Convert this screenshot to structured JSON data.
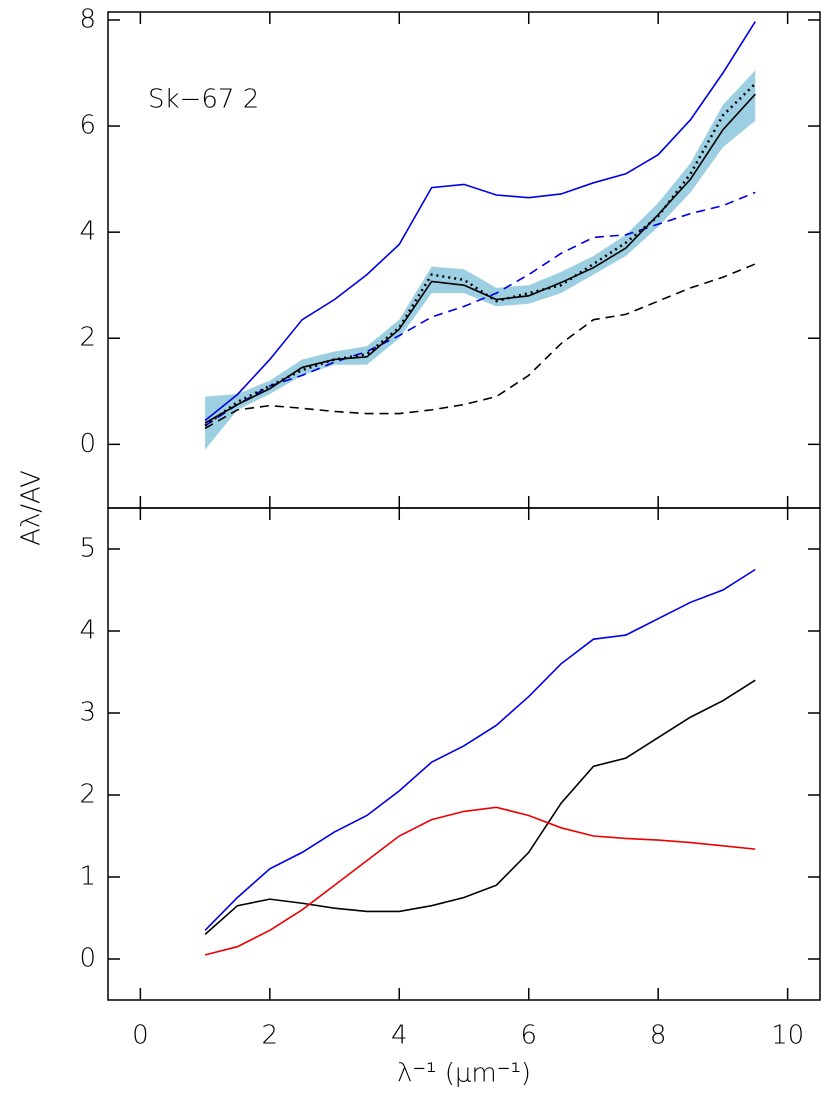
{
  "chart_data": [
    {
      "type": "line",
      "ylabel": "Aλ/AV",
      "annotation": "Sk−67 2",
      "x": [
        1,
        1.5,
        2,
        2.5,
        3,
        3.5,
        4,
        4.5,
        5,
        5.5,
        6,
        6.5,
        7,
        7.5,
        8,
        8.5,
        9,
        9.5
      ],
      "xlim": [
        -0.5,
        10.5
      ],
      "xticks": [
        0,
        2,
        4,
        6,
        8,
        10
      ],
      "ylim": [
        -1.2,
        8.15
      ],
      "yticks": [
        0,
        2,
        4,
        6,
        8
      ],
      "band": {
        "color": "#9ccfe2",
        "lower": [
          -0.1,
          0.65,
          0.95,
          1.3,
          1.5,
          1.5,
          2.0,
          2.85,
          2.85,
          2.6,
          2.65,
          2.85,
          3.2,
          3.55,
          4.1,
          4.75,
          5.6,
          6.1
        ],
        "upper": [
          0.9,
          0.95,
          1.2,
          1.6,
          1.75,
          1.85,
          2.35,
          3.35,
          3.3,
          2.95,
          3.0,
          3.25,
          3.55,
          3.95,
          4.55,
          5.3,
          6.4,
          7.05
        ]
      },
      "series": [
        {
          "color": "#0000e6",
          "style": "solid",
          "values": [
            0.45,
            0.94,
            1.6,
            2.35,
            2.73,
            3.2,
            3.77,
            4.84,
            4.9,
            4.7,
            4.65,
            4.72,
            4.93,
            5.1,
            5.46,
            6.12,
            7.0,
            7.97
          ]
        },
        {
          "color": "#0000e6",
          "style": "dashed",
          "values": [
            0.35,
            0.75,
            1.1,
            1.3,
            1.55,
            1.75,
            2.05,
            2.4,
            2.6,
            2.85,
            3.2,
            3.6,
            3.9,
            3.95,
            4.15,
            4.35,
            4.5,
            4.75
          ]
        },
        {
          "color": "#000000",
          "style": "dashed",
          "values": [
            0.3,
            0.65,
            0.73,
            0.68,
            0.62,
            0.58,
            0.58,
            0.65,
            0.75,
            0.9,
            1.3,
            1.9,
            2.35,
            2.45,
            2.7,
            2.95,
            3.15,
            3.4
          ]
        },
        {
          "color": "#000000",
          "style": "dotted",
          "values": [
            0.35,
            0.8,
            1.1,
            1.4,
            1.6,
            1.7,
            2.2,
            3.2,
            3.1,
            2.7,
            2.85,
            3.0,
            3.4,
            3.8,
            4.3,
            5.1,
            6.2,
            6.8
          ]
        },
        {
          "color": "#000000",
          "style": "solid",
          "values": [
            0.4,
            0.75,
            1.05,
            1.45,
            1.6,
            1.65,
            2.17,
            3.07,
            3.0,
            2.73,
            2.8,
            3.05,
            3.33,
            3.7,
            4.33,
            5.0,
            5.93,
            6.6
          ]
        }
      ]
    },
    {
      "type": "line",
      "xlabel": "λ⁻¹ (μm⁻¹)",
      "x": [
        1,
        1.5,
        2,
        2.5,
        3,
        3.5,
        4,
        4.5,
        5,
        5.5,
        6,
        6.5,
        7,
        7.5,
        8,
        8.5,
        9,
        9.5
      ],
      "xlim": [
        -0.5,
        10.5
      ],
      "xticks": [
        0,
        2,
        4,
        6,
        8,
        10
      ],
      "ylim": [
        -0.5,
        5.5
      ],
      "yticks": [
        0,
        1,
        2,
        3,
        4,
        5
      ],
      "series": [
        {
          "color": "#0000e6",
          "style": "solid",
          "values": [
            0.35,
            0.75,
            1.1,
            1.3,
            1.55,
            1.75,
            2.05,
            2.4,
            2.6,
            2.85,
            3.2,
            3.6,
            3.9,
            3.95,
            4.15,
            4.35,
            4.5,
            4.75
          ]
        },
        {
          "color": "#000000",
          "style": "solid",
          "values": [
            0.3,
            0.65,
            0.73,
            0.68,
            0.62,
            0.58,
            0.58,
            0.65,
            0.75,
            0.9,
            1.3,
            1.9,
            2.35,
            2.45,
            2.7,
            2.95,
            3.15,
            3.4
          ]
        },
        {
          "color": "#ee0000",
          "style": "solid",
          "values": [
            0.05,
            0.15,
            0.35,
            0.6,
            0.9,
            1.2,
            1.5,
            1.7,
            1.8,
            1.85,
            1.75,
            1.6,
            1.5,
            1.47,
            1.45,
            1.42,
            1.38,
            1.34
          ]
        }
      ]
    }
  ]
}
